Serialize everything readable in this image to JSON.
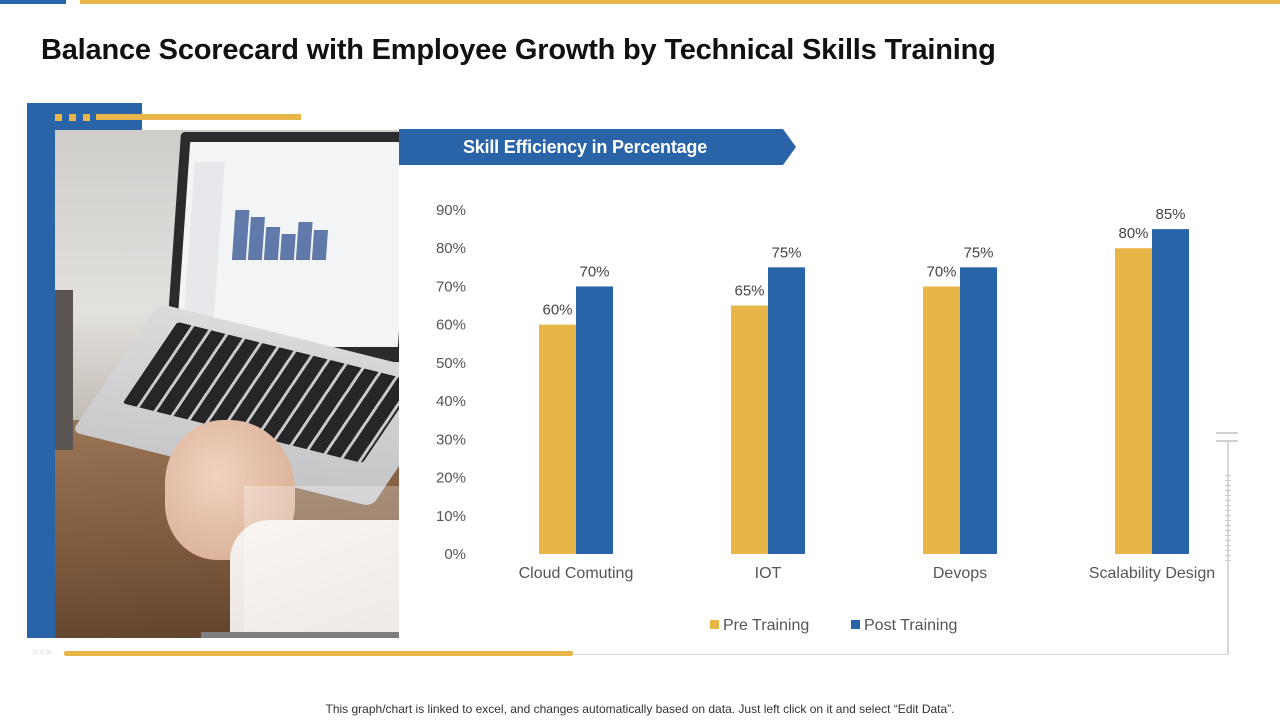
{
  "slide": {
    "title": "Balance Scorecard with Employee Growth by Technical Skills Training",
    "banner": "Skill Efficiency in Percentage",
    "footnote": "This graph/chart is linked to excel, and changes automatically based on data. Just left click on it and select “Edit Data”."
  },
  "colors": {
    "accent_blue": "#2a64a8",
    "accent_gold": "#e8b548"
  },
  "chart_data": {
    "type": "bar",
    "categories": [
      "Cloud Comuting",
      "IOT",
      "Devops",
      "Scalability Design"
    ],
    "series": [
      {
        "name": "Pre Training",
        "color": "#e8b548",
        "values": [
          60,
          65,
          70,
          80
        ],
        "labels": [
          "60%",
          "65%",
          "70%",
          "80%"
        ]
      },
      {
        "name": "Post Training",
        "color": "#2a64a8",
        "values": [
          70,
          75,
          75,
          85
        ],
        "labels": [
          "70%",
          "75%",
          "75%",
          "85%"
        ]
      }
    ],
    "yticks": [
      "0%",
      "10%",
      "20%",
      "30%",
      "40%",
      "50%",
      "60%",
      "70%",
      "80%",
      "90%"
    ],
    "ylim": [
      0,
      90
    ],
    "grid": false,
    "legend": "bottom"
  }
}
